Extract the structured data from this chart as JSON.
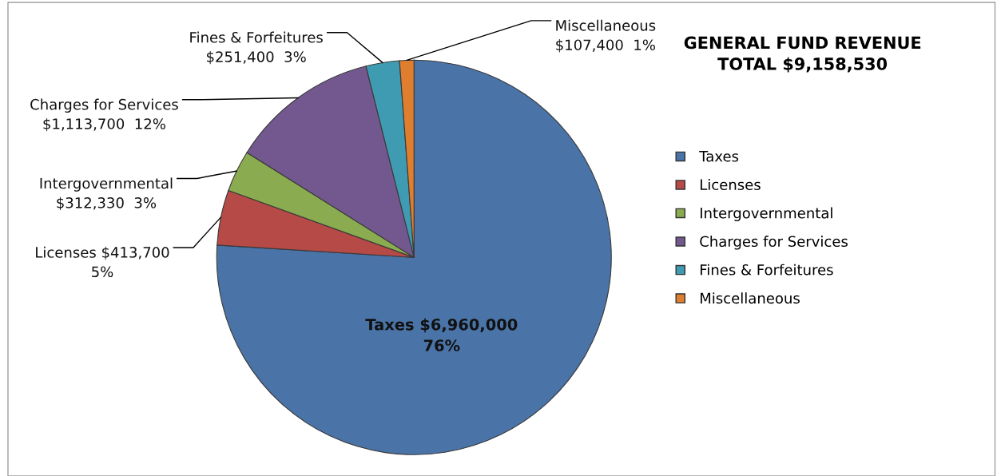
{
  "chart_data": {
    "type": "pie",
    "title": "GENERAL FUND REVENUE\nTOTAL $9,158,530",
    "categories": [
      "Taxes",
      "Licenses",
      "Intergovernmental",
      "Charges for Services",
      "Fines & Forfeitures",
      "Miscellaneous"
    ],
    "values": [
      6960000,
      413700,
      312330,
      1113700,
      251400,
      107400
    ],
    "colors": [
      "#4a74a8",
      "#b64a47",
      "#8aab4f",
      "#73588f",
      "#3e9bb2",
      "#e07e30"
    ],
    "value_labels": [
      "Taxes $6,960,000\n76%",
      "Licenses $413,700\n5%",
      "Intergovernmental\n$312,330  3%",
      "Charges for Services\n$1,113,700  12%",
      "Fines & Forfeitures\n$251,400  3%",
      "Miscellaneous\n$107,400  1%"
    ],
    "legend": "right"
  }
}
